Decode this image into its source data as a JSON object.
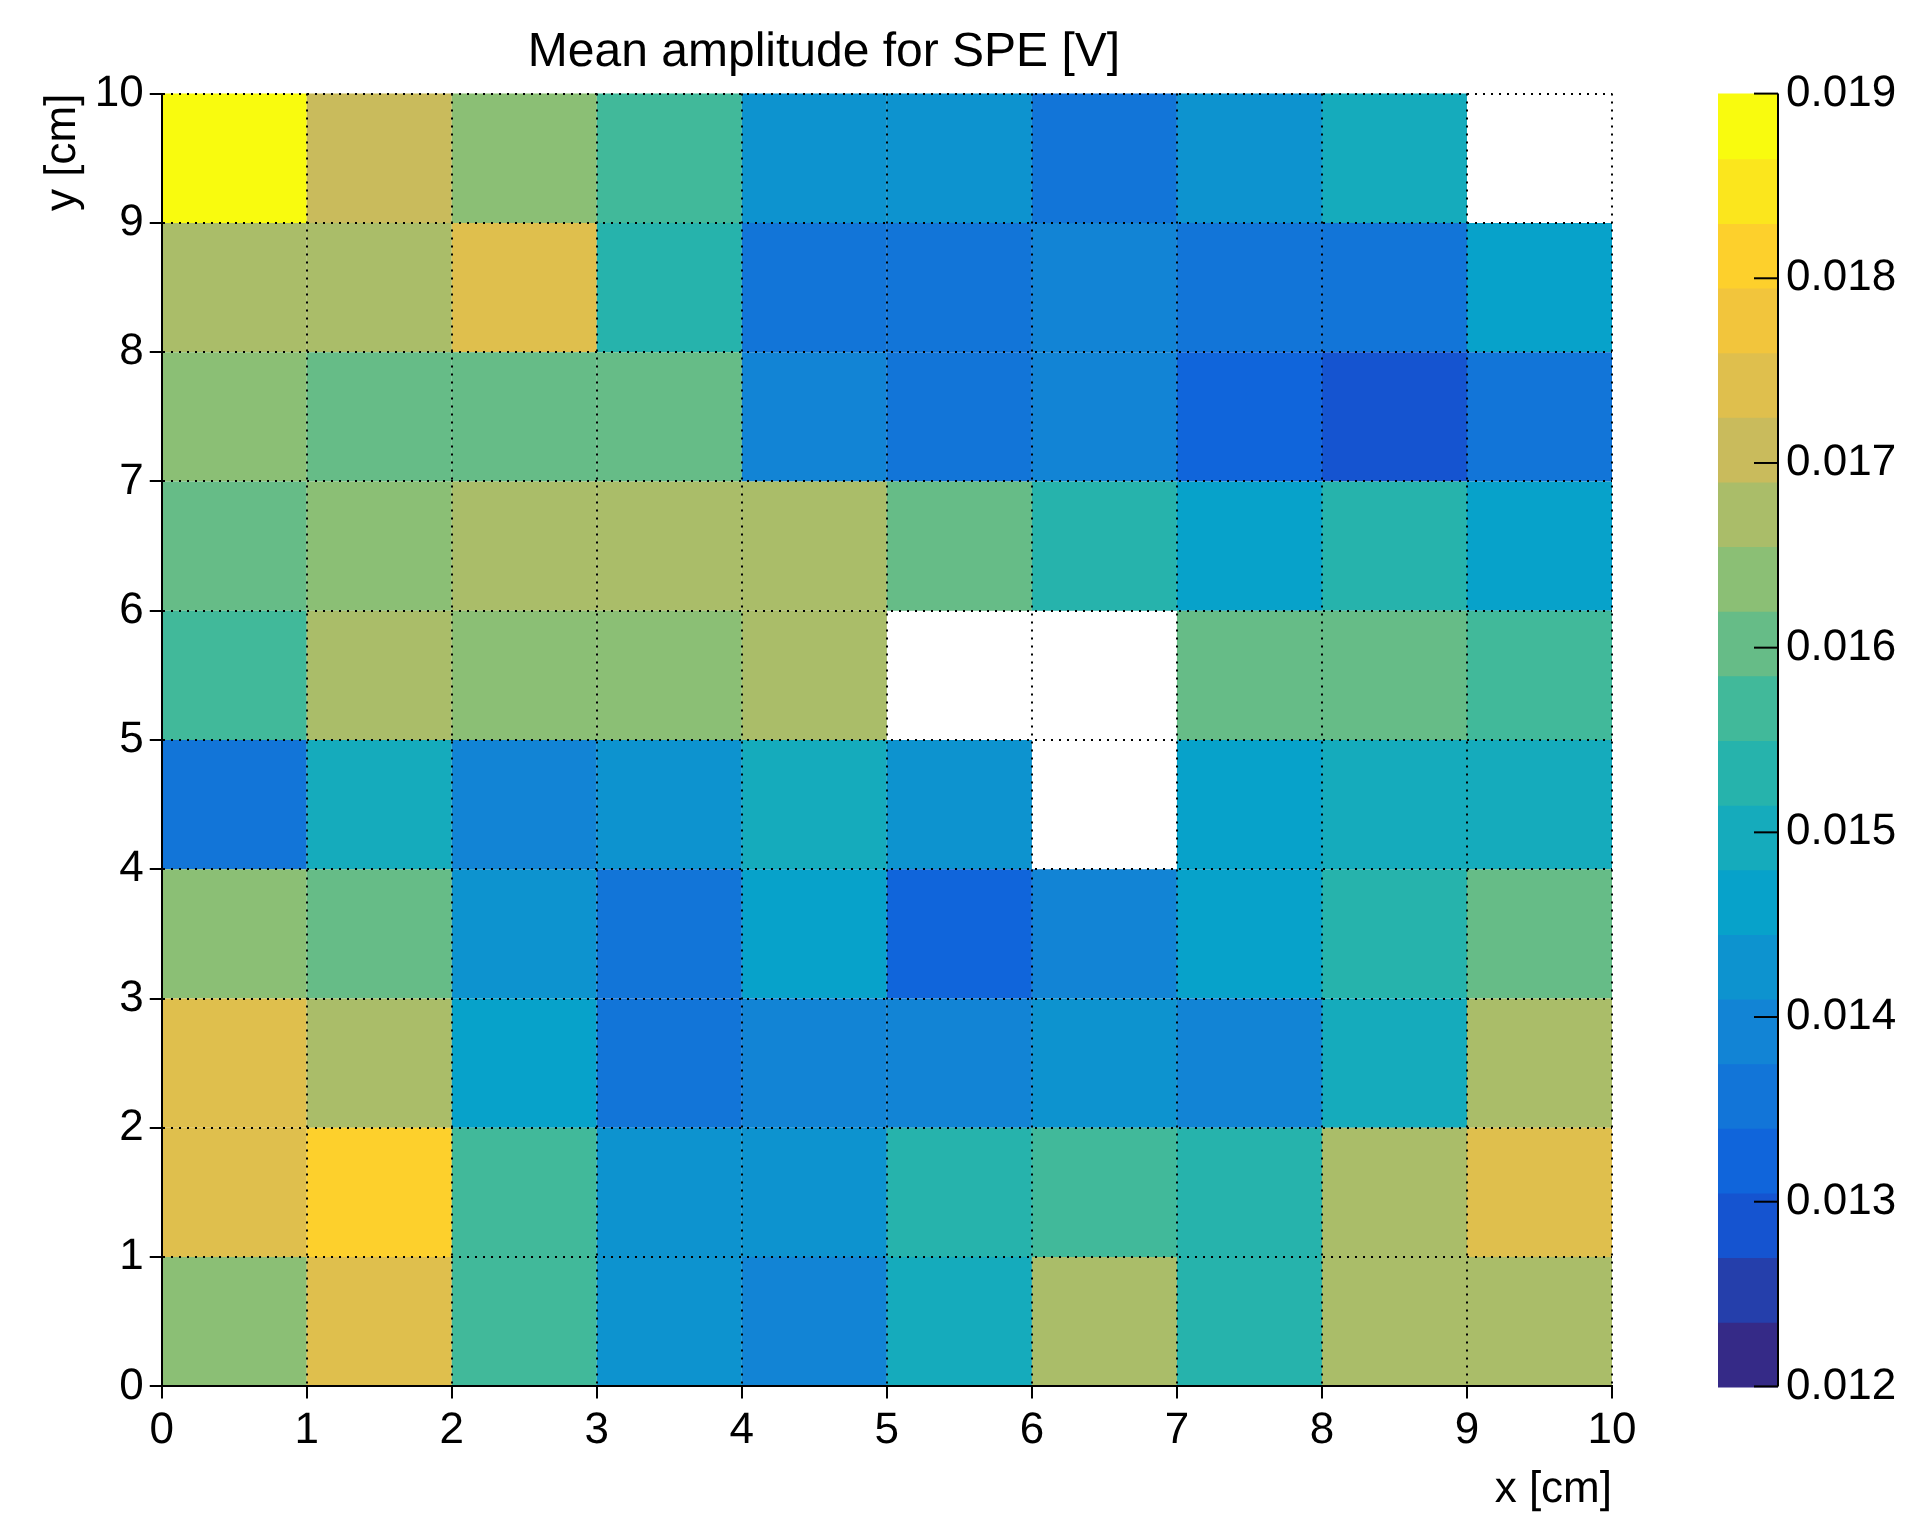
{
  "chart_data": {
    "type": "heatmap",
    "title": "Mean amplitude for SPE [V]",
    "xlabel": "x [cm]",
    "ylabel": "y [cm]",
    "xlim": [
      0,
      10
    ],
    "xticks": [
      0,
      1,
      2,
      3,
      4,
      5,
      6,
      7,
      8,
      9,
      10
    ],
    "ylim": [
      0,
      10
    ],
    "yticks": [
      0,
      1,
      2,
      3,
      4,
      5,
      6,
      7,
      8,
      9,
      10
    ],
    "grid": true,
    "clim": [
      0.012,
      0.019
    ],
    "cticks": [
      0.012,
      0.013,
      0.014,
      0.015,
      0.016,
      0.017,
      0.018,
      0.019
    ],
    "cells": [
      [
        0.0188,
        0.0172,
        0.0164,
        0.0156,
        0.0143,
        0.0143,
        0.0136,
        0.0143,
        0.0149,
        null
      ],
      [
        0.0168,
        0.0168,
        0.0173,
        0.0152,
        0.0136,
        0.0136,
        0.0139,
        0.0136,
        0.0136,
        0.0145
      ],
      [
        0.0164,
        0.016,
        0.016,
        0.0161,
        0.0138,
        0.0135,
        0.0139,
        0.0132,
        0.0129,
        0.0137
      ],
      [
        0.0161,
        0.0165,
        0.0168,
        0.0168,
        0.0168,
        0.0161,
        0.0153,
        0.0146,
        0.0153,
        0.0145
      ],
      [
        0.0156,
        0.0169,
        0.0165,
        0.0165,
        0.0168,
        null,
        null,
        0.0162,
        0.016,
        0.0157
      ],
      [
        0.0137,
        0.0148,
        0.0139,
        0.0143,
        0.0149,
        0.0143,
        null,
        0.0146,
        0.0148,
        0.0148
      ],
      [
        0.0164,
        0.016,
        0.0142,
        0.0135,
        0.0146,
        0.0131,
        0.0139,
        0.0146,
        0.0153,
        0.0161
      ],
      [
        0.0173,
        0.0168,
        0.0146,
        0.0135,
        0.0139,
        0.0139,
        0.0142,
        0.0139,
        0.0149,
        0.0168
      ],
      [
        0.0173,
        0.018,
        0.0156,
        0.0143,
        0.0143,
        0.0153,
        0.0156,
        0.0153,
        0.0168,
        0.0173
      ],
      [
        0.0164,
        0.0173,
        0.0156,
        0.0143,
        0.014,
        0.0149,
        0.0169,
        0.0152,
        0.0168,
        0.0168
      ]
    ]
  }
}
